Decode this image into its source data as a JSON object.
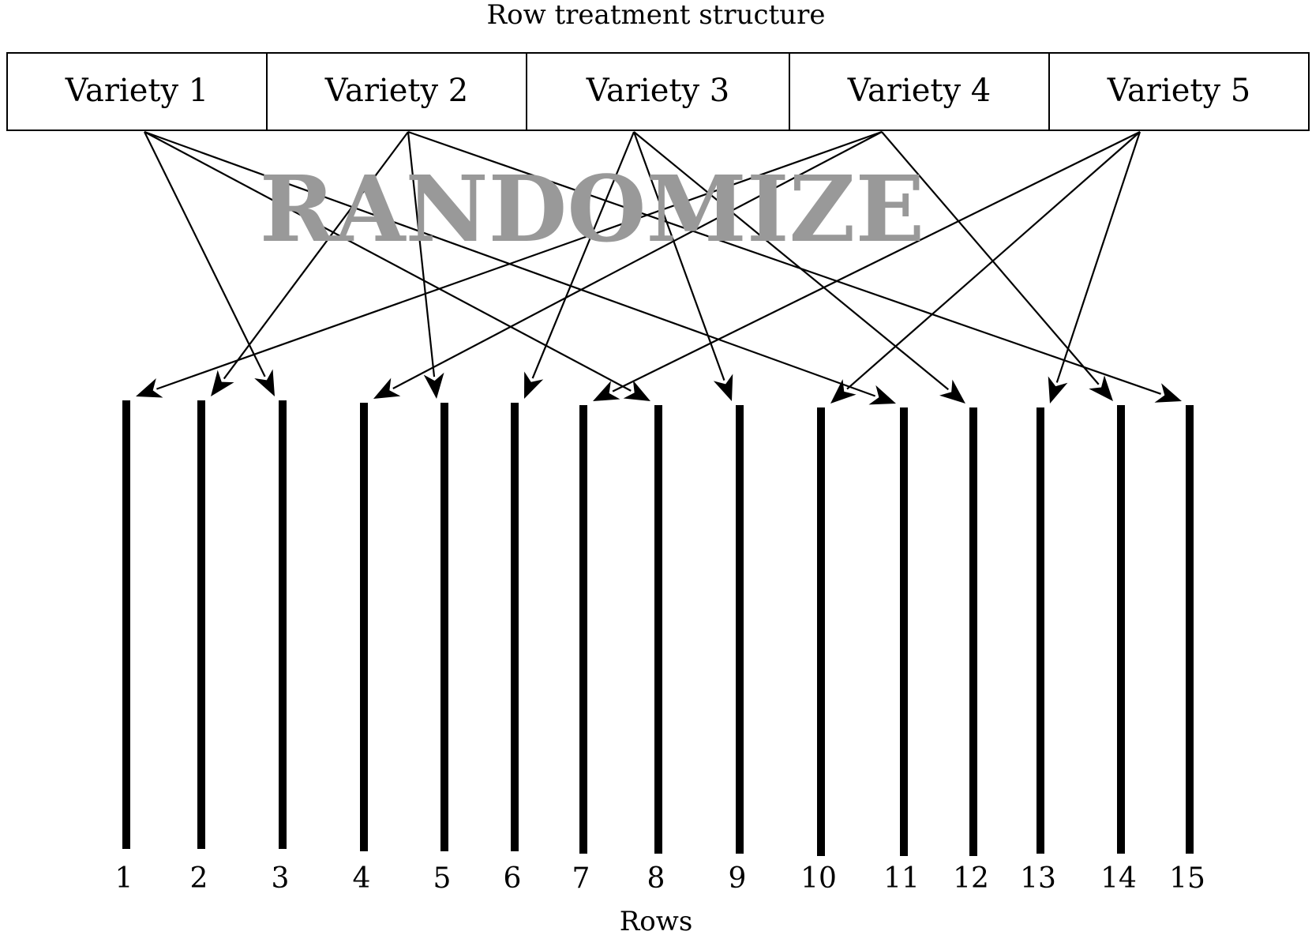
{
  "title": "Row treatment structure",
  "varieties": [
    {
      "id": 1,
      "label": "Variety 1"
    },
    {
      "id": 2,
      "label": "Variety 2"
    },
    {
      "id": 3,
      "label": "Variety 3"
    },
    {
      "id": 4,
      "label": "Variety 4"
    },
    {
      "id": 5,
      "label": "Variety 5"
    }
  ],
  "overlay_text": "RANDOMIZE",
  "rows": [
    "1",
    "2",
    "3",
    "4",
    "5",
    "6",
    "7",
    "8",
    "9",
    "10",
    "11",
    "12",
    "13",
    "14",
    "15"
  ],
  "x_label": "Rows",
  "assignments": [
    {
      "variety": 1,
      "rows": [
        3,
        8,
        11
      ]
    },
    {
      "variety": 2,
      "rows": [
        2,
        5,
        15
      ]
    },
    {
      "variety": 3,
      "rows": [
        6,
        9,
        12
      ]
    },
    {
      "variety": 4,
      "rows": [
        1,
        4,
        14
      ]
    },
    {
      "variety": 5,
      "rows": [
        7,
        10,
        13
      ]
    }
  ],
  "colors": {
    "line": "#000000",
    "overlay": "#999999"
  }
}
